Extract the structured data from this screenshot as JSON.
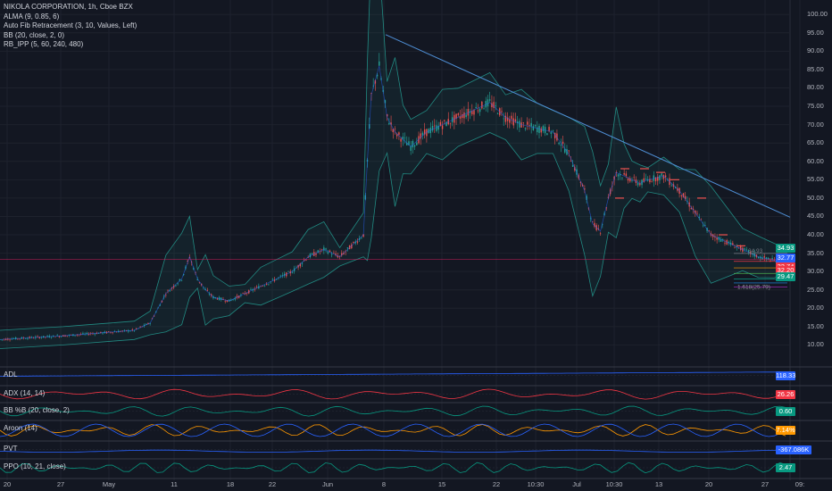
{
  "header": {
    "title": "NIKOLA CORPORATION, 1h, Cboe BZX"
  },
  "indicators": [
    "ALMA (9, 0.85, 6)",
    "Auto Fib Retracement (3, 10, Values, Left)",
    "BB (20, close, 2, 0)",
    "RB_IPP (5, 60, 240, 480)"
  ],
  "panes": [
    {
      "label": "ADL",
      "value": "118.33",
      "color": "#2962ff"
    },
    {
      "label": "ADX (14, 14)",
      "value": "26.26",
      "color": "#f23645"
    },
    {
      "label": "BB %B (20, close, 2)",
      "value": "0.60",
      "color": "#089981"
    },
    {
      "label": "Aroon (14)",
      "value": "7.14%",
      "color": "#ff9800"
    },
    {
      "label": "PVT",
      "value": "-367.086K",
      "color": "#2962ff"
    },
    {
      "label": "PPO (10, 21, close)",
      "value": "2.47",
      "color": "#089981"
    }
  ],
  "price_tags": [
    {
      "value": "34.93",
      "color": "#089981"
    },
    {
      "value": "32.77",
      "color": "#2962ff"
    },
    {
      "value": "32.74",
      "color": "#f23645"
    },
    {
      "value": "32.20",
      "color": "#f23645"
    },
    {
      "value": "29.47",
      "color": "#089981"
    }
  ],
  "fib_labels": [
    "34.93",
    "1.618(25.79)"
  ],
  "colors": {
    "background": "#131722",
    "up": "#26a69a",
    "down": "#ef5350",
    "trendline": "#4f8fd6",
    "bands": "#26a69a"
  },
  "chart_data": {
    "type": "line",
    "title": "NIKOLA CORPORATION, 1h, Cboe BZX",
    "x_ticks": [
      "20",
      "27",
      "May",
      "11",
      "18",
      "22",
      "Jun",
      "8",
      "15",
      "22",
      "10:30",
      "Jul",
      "10:30",
      "13",
      "20",
      "27",
      "09:"
    ],
    "y_ticks": [
      "100.00",
      "95.00",
      "90.00",
      "85.00",
      "80.00",
      "75.00",
      "70.00",
      "65.00",
      "60.00",
      "55.00",
      "50.00",
      "45.00",
      "40.00",
      "35.00",
      "30.00",
      "25.00",
      "20.00",
      "15.00",
      "10.00"
    ],
    "ylim": [
      5,
      102
    ],
    "x": [
      0,
      0.04,
      0.08,
      0.11,
      0.14,
      0.17,
      0.19,
      0.21,
      0.23,
      0.24,
      0.25,
      0.26,
      0.27,
      0.29,
      0.31,
      0.33,
      0.35,
      0.37,
      0.39,
      0.41,
      0.43,
      0.46,
      0.465,
      0.47,
      0.48,
      0.49,
      0.5,
      0.51,
      0.52,
      0.54,
      0.56,
      0.58,
      0.6,
      0.62,
      0.64,
      0.66,
      0.68,
      0.7,
      0.72,
      0.74,
      0.75,
      0.76,
      0.77,
      0.78,
      0.79,
      0.8,
      0.81,
      0.82,
      0.84,
      0.86,
      0.88,
      0.9,
      0.92,
      0.94,
      0.96,
      0.98,
      1.0
    ],
    "y": [
      11.5,
      12,
      12.5,
      13,
      13.5,
      14,
      16,
      24,
      28,
      34,
      28,
      25,
      23,
      22,
      24,
      26,
      28,
      30,
      34,
      36,
      34,
      40,
      60,
      78,
      86,
      72,
      68,
      66,
      64,
      68,
      70,
      72,
      74,
      76,
      72,
      70,
      69,
      68,
      62,
      52,
      43,
      41,
      50,
      57,
      56,
      55,
      54,
      55,
      56,
      52,
      46,
      40,
      38,
      36,
      34,
      33,
      33
    ]
  }
}
